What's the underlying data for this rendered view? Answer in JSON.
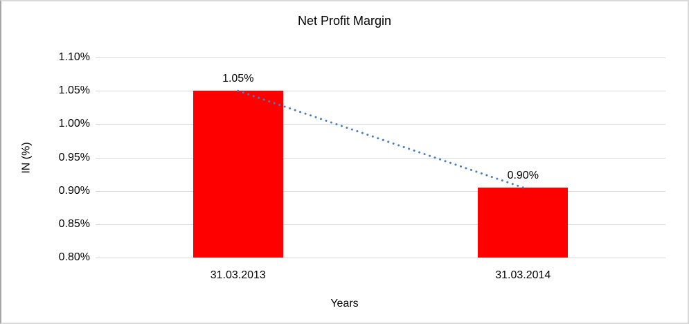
{
  "chart_data": {
    "type": "bar",
    "title": "Net Profit Margin",
    "xlabel": "Years",
    "ylabel": "IN (%)",
    "categories": [
      "31.03.2013",
      "31.03.2014"
    ],
    "values": [
      1.05,
      0.905
    ],
    "data_labels": [
      "1.05%",
      "0.90%"
    ],
    "ylim": [
      0.8,
      1.1
    ],
    "yticks": [
      {
        "value": 1.1,
        "label": "1.10%"
      },
      {
        "value": 1.05,
        "label": "1.05%"
      },
      {
        "value": 1.0,
        "label": "1.00%"
      },
      {
        "value": 0.95,
        "label": "0.95%"
      },
      {
        "value": 0.9,
        "label": "0.90%"
      },
      {
        "value": 0.85,
        "label": "0.85%"
      },
      {
        "value": 0.8,
        "label": "0.80%"
      }
    ],
    "grid": true,
    "legend": "none",
    "colors": {
      "bar": "#ff0000",
      "gridline": "#d9d9d9",
      "trendline": "#4a7ebb",
      "text": "#000000",
      "background": "#ffffff"
    },
    "trendline": {
      "style": "dotted",
      "from_label": "1.05%",
      "to_label": "0.90%"
    }
  }
}
